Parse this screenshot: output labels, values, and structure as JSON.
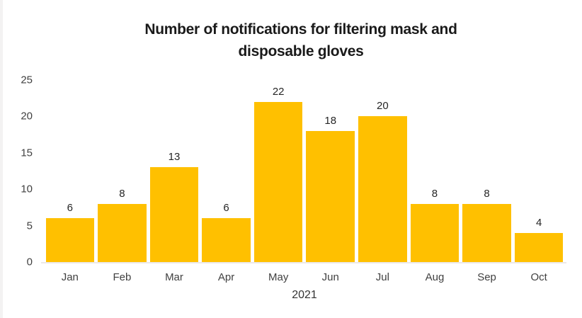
{
  "chart_data": {
    "type": "bar",
    "title": "Number of notifications for filtering mask and disposable gloves",
    "title_lines": [
      "Number of notifications for filtering mask and",
      "disposable gloves"
    ],
    "categories": [
      "Jan",
      "Feb",
      "Mar",
      "Apr",
      "May",
      "Jun",
      "Jul",
      "Aug",
      "Sep",
      "Oct"
    ],
    "values": [
      6,
      8,
      13,
      6,
      22,
      18,
      20,
      8,
      8,
      4
    ],
    "xlabel": "2021",
    "ylabel": "",
    "ylim": [
      0,
      25
    ],
    "yticks": [
      0,
      5,
      10,
      15,
      20,
      25
    ],
    "bar_color": "#FFC000",
    "data_labels": true,
    "grid": false,
    "legend": false
  },
  "colors": {
    "title_text": "#1a1a1a",
    "axis_text": "#404040",
    "value_label_text": "#262626",
    "axis_line": "#ece8e8",
    "background": "#ffffff"
  }
}
